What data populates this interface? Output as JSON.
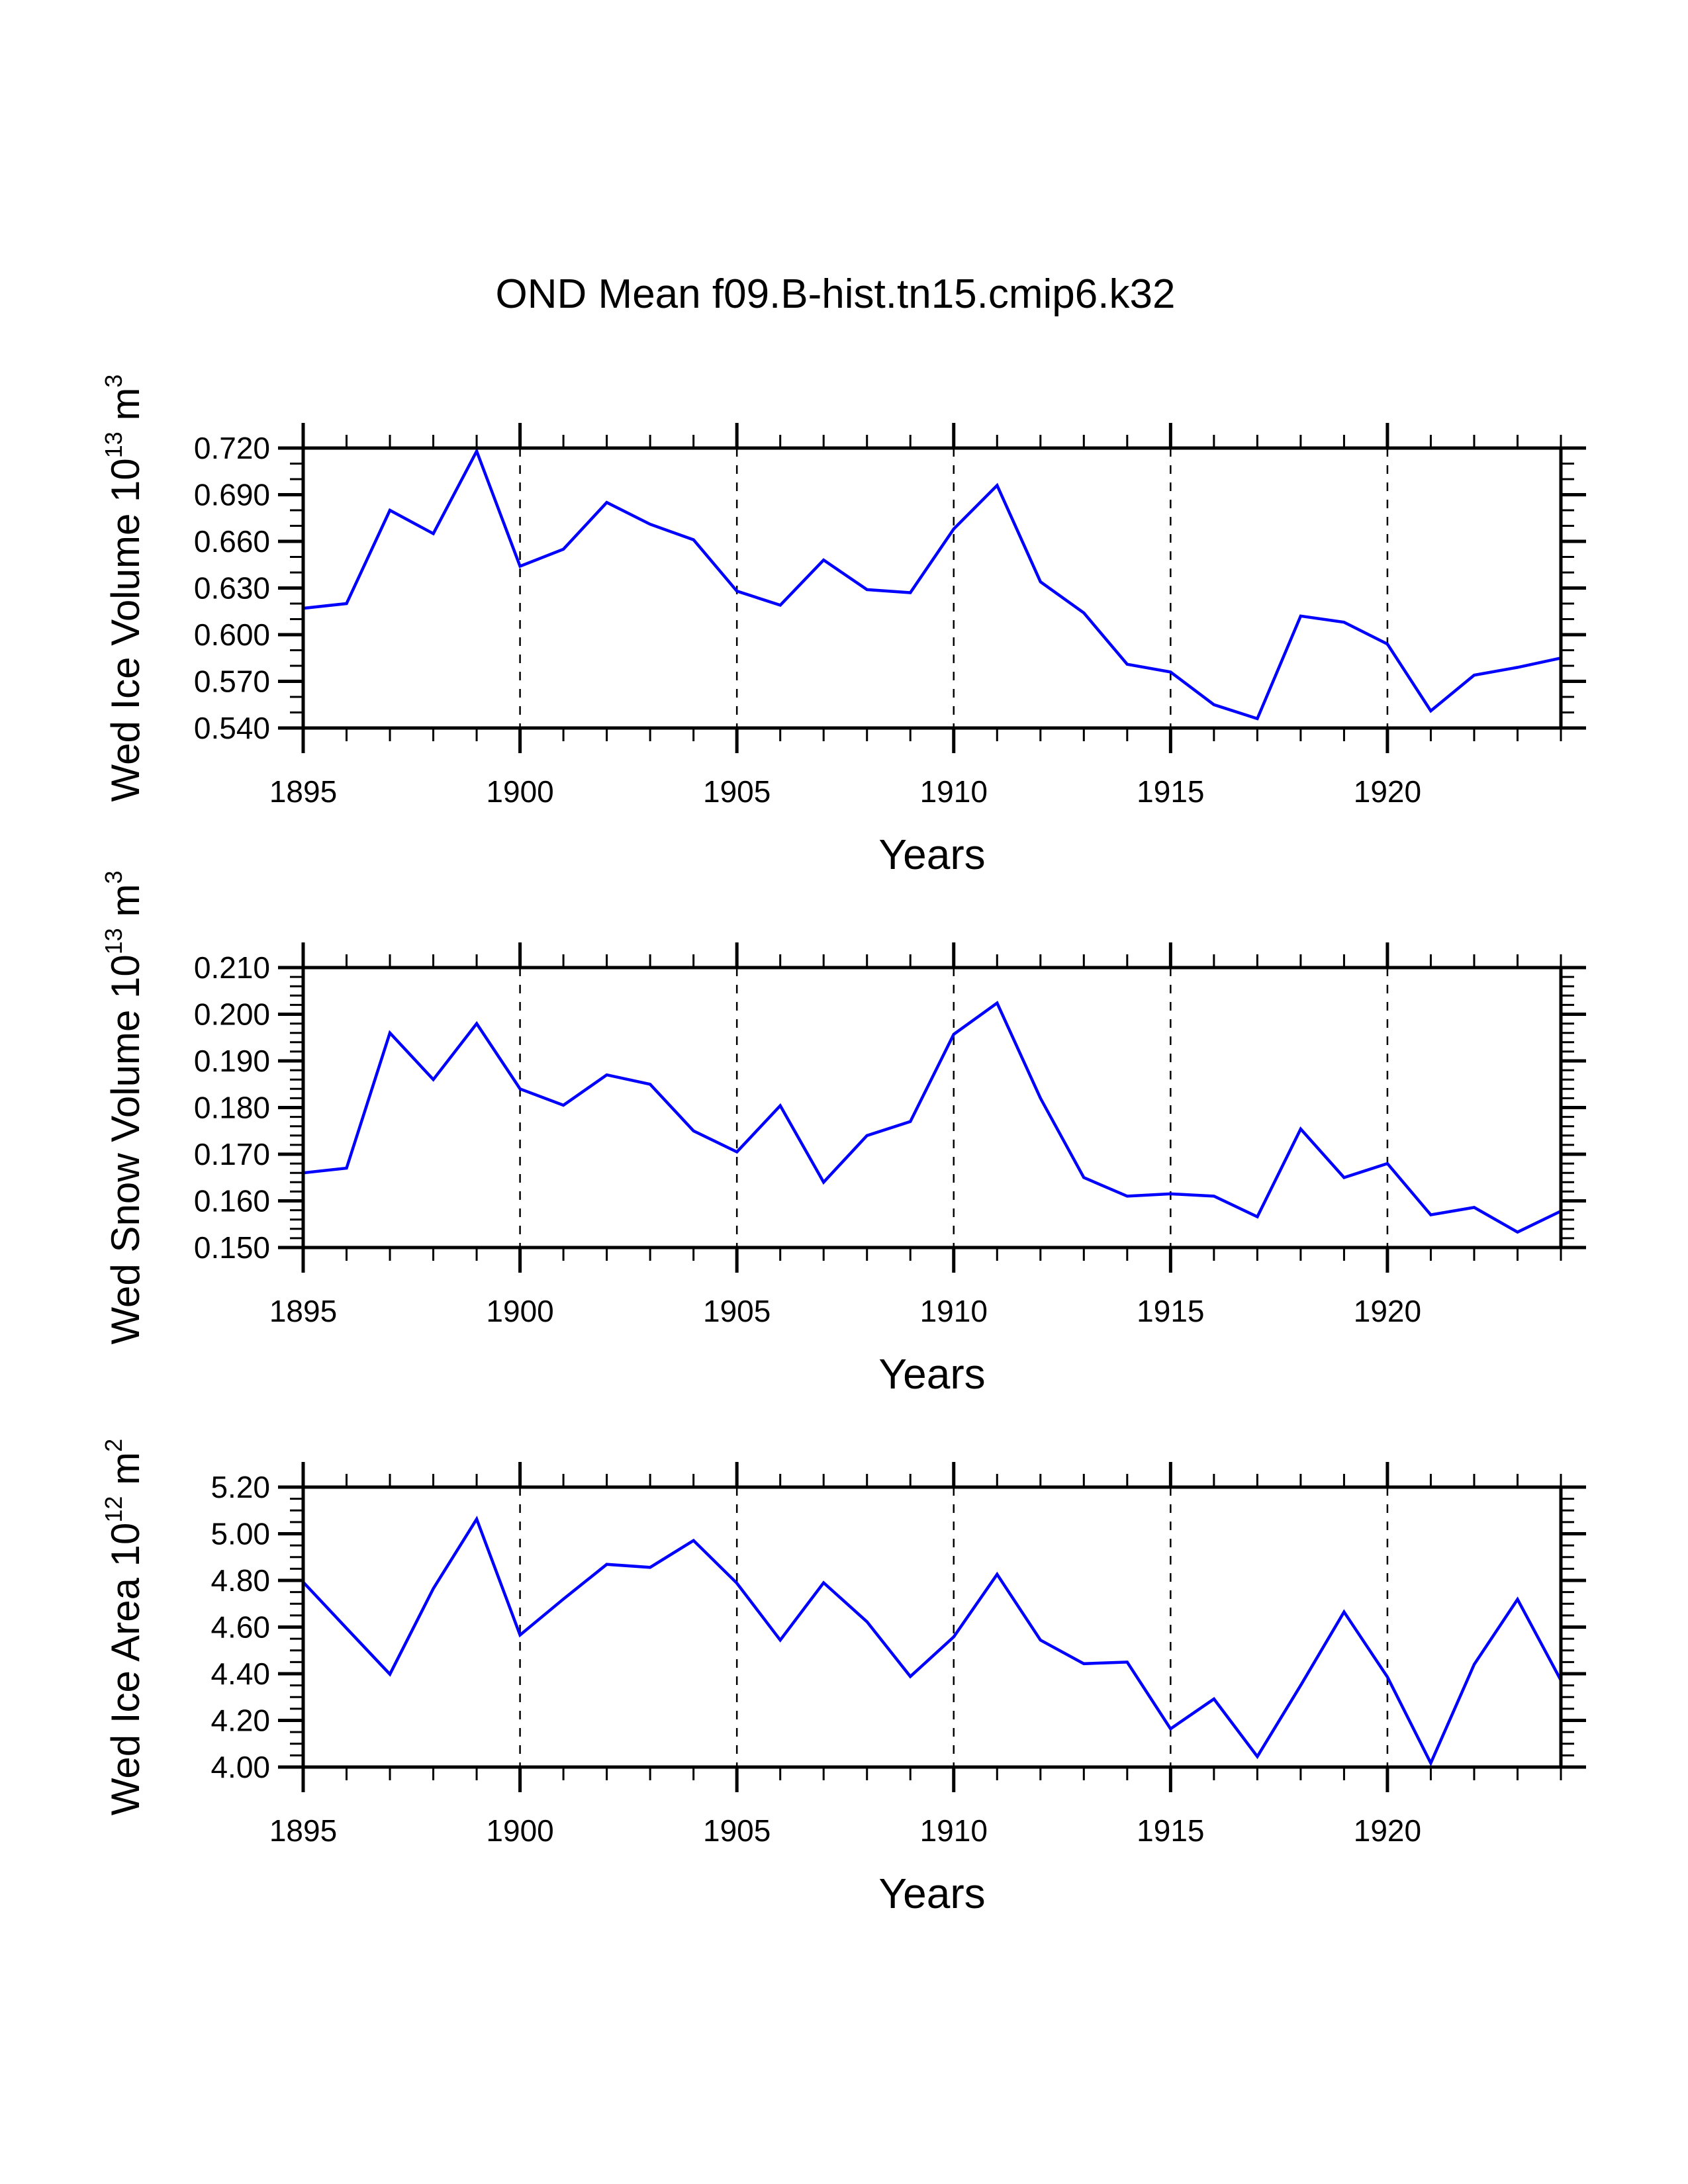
{
  "chart_data": [
    {
      "type": "line",
      "title": "OND Mean f09.B-hist.tn15.cmip6.k32",
      "xlabel": "Years",
      "ylabel": "Wed Ice Volume 10^13 m^3",
      "ylabel_parts": {
        "text": "Wed Ice Volume 10",
        "exp": "13",
        "unit": " m",
        "unit_exp": "3"
      },
      "xlim": [
        1895,
        1924
      ],
      "ylim": [
        0.54,
        0.72
      ],
      "x_ticks": [
        1895,
        1900,
        1905,
        1910,
        1915,
        1920
      ],
      "x_tick_labels": [
        "1895",
        "1900",
        "1905",
        "1910",
        "1915",
        "1920"
      ],
      "y_ticks": [
        0.54,
        0.57,
        0.6,
        0.63,
        0.66,
        0.69,
        0.72
      ],
      "y_tick_labels": [
        "0.540",
        "0.570",
        "0.600",
        "0.630",
        "0.660",
        "0.690",
        "0.720"
      ],
      "y_minor_per_major": 3,
      "x_minor_step": 1,
      "grid": "vertical dashed at major x ticks",
      "line_color": "#0000ff",
      "series": [
        {
          "name": "Wed Ice Volume",
          "x": [
            1895,
            1896,
            1897,
            1898,
            1899,
            1900,
            1901,
            1902,
            1903,
            1904,
            1905,
            1906,
            1907,
            1908,
            1909,
            1910,
            1911,
            1912,
            1913,
            1914,
            1915,
            1916,
            1917,
            1918,
            1919,
            1920,
            1921,
            1922,
            1923,
            1924
          ],
          "values": [
            0.617,
            0.62,
            0.68,
            0.665,
            0.718,
            0.644,
            0.655,
            0.685,
            0.671,
            0.661,
            0.628,
            0.619,
            0.648,
            0.629,
            0.627,
            0.668,
            0.696,
            0.634,
            0.614,
            0.581,
            0.576,
            0.555,
            0.546,
            0.612,
            0.608,
            0.594,
            0.551,
            0.574,
            0.579,
            0.585
          ]
        }
      ]
    },
    {
      "type": "line",
      "title": "",
      "xlabel": "Years",
      "ylabel": "Wed Snow Volume 10^13 m^3",
      "ylabel_parts": {
        "text": "Wed Snow Volume 10",
        "exp": "13",
        "unit": " m",
        "unit_exp": "3"
      },
      "xlim": [
        1895,
        1924
      ],
      "ylim": [
        0.15,
        0.21
      ],
      "x_ticks": [
        1895,
        1900,
        1905,
        1910,
        1915,
        1920
      ],
      "x_tick_labels": [
        "1895",
        "1900",
        "1905",
        "1910",
        "1915",
        "1920"
      ],
      "y_ticks": [
        0.15,
        0.16,
        0.17,
        0.18,
        0.19,
        0.2,
        0.21
      ],
      "y_tick_labels": [
        "0.150",
        "0.160",
        "0.170",
        "0.180",
        "0.190",
        "0.200",
        "0.210"
      ],
      "y_minor_per_major": 5,
      "x_minor_step": 1,
      "grid": "vertical dashed at major x ticks",
      "line_color": "#0000ff",
      "series": [
        {
          "name": "Wed Snow Volume",
          "x": [
            1895,
            1896,
            1897,
            1898,
            1899,
            1900,
            1901,
            1902,
            1903,
            1904,
            1905,
            1906,
            1907,
            1908,
            1909,
            1910,
            1911,
            1912,
            1913,
            1914,
            1915,
            1916,
            1917,
            1918,
            1919,
            1920,
            1921,
            1922,
            1923,
            1924
          ],
          "values": [
            0.166,
            0.167,
            0.196,
            0.186,
            0.198,
            0.184,
            0.1805,
            0.187,
            0.185,
            0.175,
            0.1705,
            0.1804,
            0.164,
            0.174,
            0.177,
            0.1957,
            0.2024,
            0.182,
            0.165,
            0.161,
            0.1615,
            0.161,
            0.1566,
            0.1754,
            0.165,
            0.168,
            0.157,
            0.1586,
            0.1533,
            0.1578
          ]
        }
      ]
    },
    {
      "type": "line",
      "title": "",
      "xlabel": "Years",
      "ylabel": "Wed Ice Area 10^12 m^2",
      "ylabel_parts": {
        "text": "Wed Ice Area 10",
        "exp": "12",
        "unit": " m",
        "unit_exp": "2"
      },
      "xlim": [
        1895,
        1924
      ],
      "ylim": [
        4.0,
        5.2
      ],
      "x_ticks": [
        1895,
        1900,
        1905,
        1910,
        1915,
        1920
      ],
      "x_tick_labels": [
        "1895",
        "1900",
        "1905",
        "1910",
        "1915",
        "1920"
      ],
      "y_ticks": [
        4.0,
        4.2,
        4.4,
        4.6,
        4.8,
        5.0,
        5.2
      ],
      "y_tick_labels": [
        "4.00",
        "4.20",
        "4.40",
        "4.60",
        "4.80",
        "5.00",
        "5.20"
      ],
      "y_minor_per_major": 4,
      "x_minor_step": 1,
      "grid": "vertical dashed at major x ticks",
      "line_color": "#0000ff",
      "series": [
        {
          "name": "Wed Ice Area",
          "x": [
            1895,
            1896,
            1897,
            1898,
            1899,
            1900,
            1901,
            1902,
            1903,
            1904,
            1905,
            1906,
            1907,
            1908,
            1909,
            1910,
            1911,
            1912,
            1913,
            1914,
            1915,
            1916,
            1917,
            1918,
            1919,
            1920,
            1921,
            1922,
            1923,
            1924
          ],
          "values": [
            4.793,
            4.595,
            4.398,
            4.765,
            5.063,
            4.566,
            4.72,
            4.869,
            4.856,
            4.971,
            4.788,
            4.544,
            4.79,
            4.623,
            4.388,
            4.558,
            4.826,
            4.544,
            4.443,
            4.45,
            4.164,
            4.292,
            4.045,
            4.35,
            4.665,
            4.386,
            4.017,
            4.44,
            4.719,
            4.372
          ]
        }
      ]
    }
  ],
  "page": {
    "title": "OND Mean f09.B-hist.tn15.cmip6.k32"
  }
}
